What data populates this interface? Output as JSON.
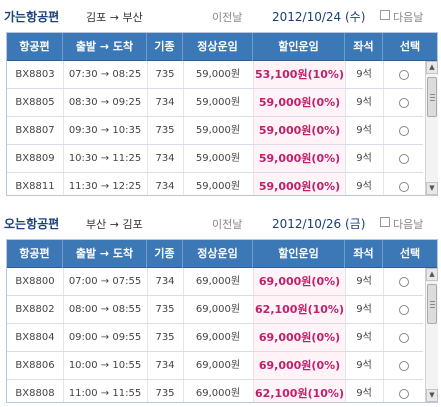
{
  "outbound": {
    "title": "가는항공편",
    "route": "김포 → 부산",
    "prev_label": "이전날",
    "date": "2012/10/24 (수)",
    "next_label": "다음날",
    "headers": [
      "항공편",
      "출발 → 도착",
      "기종",
      "정상운임",
      "할인운임",
      "좌석",
      "선택"
    ],
    "rows": [
      {
        "flight": "BX8803",
        "time": "07:30 → 08:25",
        "type": "735",
        "fare": "59,000원",
        "discount": "53,100원(10%)",
        "seats": "9석"
      },
      {
        "flight": "BX8805",
        "time": "08:30 → 09:25",
        "type": "734",
        "fare": "59,000원",
        "discount": "59,000원(0%)",
        "seats": "9석"
      },
      {
        "flight": "BX8807",
        "time": "09:30 → 10:35",
        "type": "735",
        "fare": "59,000원",
        "discount": "59,000원(0%)",
        "seats": "9석"
      },
      {
        "flight": "BX8809",
        "time": "10:30 → 11:25",
        "type": "734",
        "fare": "59,000원",
        "discount": "59,000원(0%)",
        "seats": "9석"
      },
      {
        "flight": "BX8811",
        "time": "11:30 → 12:25",
        "type": "734",
        "fare": "59,000원",
        "discount": "59,000원(0%)",
        "seats": "9석"
      }
    ]
  },
  "inbound": {
    "title": "오는항공편",
    "route": "부산 → 김포",
    "prev_label": "이전날",
    "date": "2012/10/26 (금)",
    "next_label": "다음날",
    "headers": [
      "항공편",
      "출발 → 도착",
      "기종",
      "정상운임",
      "할인운임",
      "좌석",
      "선택"
    ],
    "rows": [
      {
        "flight": "BX8800",
        "time": "07:00 → 07:55",
        "type": "734",
        "fare": "69,000원",
        "discount": "69,000원(0%)",
        "seats": "9석"
      },
      {
        "flight": "BX8802",
        "time": "08:00 → 08:55",
        "type": "735",
        "fare": "69,000원",
        "discount": "62,100원(10%)",
        "seats": "9석"
      },
      {
        "flight": "BX8804",
        "time": "09:00 → 09:55",
        "type": "735",
        "fare": "69,000원",
        "discount": "69,000원(0%)",
        "seats": "9석"
      },
      {
        "flight": "BX8806",
        "time": "10:00 → 10:55",
        "type": "734",
        "fare": "69,000원",
        "discount": "69,000원(0%)",
        "seats": "9석"
      },
      {
        "flight": "BX8808",
        "time": "11:00 → 11:55",
        "type": "735",
        "fare": "69,000원",
        "discount": "62,100원(10%)",
        "seats": "9석"
      }
    ]
  },
  "colors": {
    "header_bg": "#3d78b6",
    "discount_text": "#c0206a",
    "title_text": "#1a3f7a"
  },
  "icons": {
    "scroll_up": "▲",
    "scroll_down": "▼"
  }
}
